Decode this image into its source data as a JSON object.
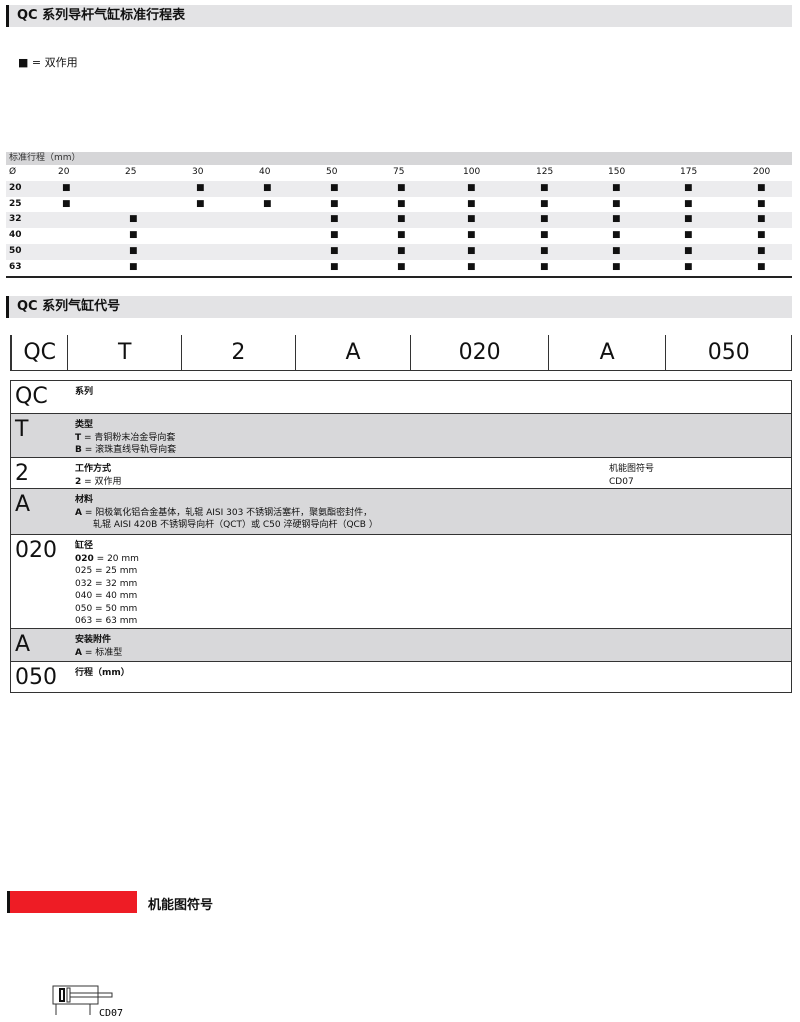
{
  "section1": {
    "title": "QC 系列导杆气缸标准行程表"
  },
  "legend": {
    "symbol": "■",
    "text": "= 双作用"
  },
  "stroke_table": {
    "header": "标准行程（mm）",
    "bore_label": "Ø",
    "strokes": [
      "20",
      "25",
      "30",
      "40",
      "50",
      "75",
      "100",
      "125",
      "150",
      "175",
      "200"
    ],
    "rows": [
      {
        "bore": "20",
        "marks": [
          1,
          0,
          1,
          1,
          1,
          1,
          1,
          1,
          1,
          1,
          1
        ]
      },
      {
        "bore": "25",
        "marks": [
          1,
          0,
          1,
          1,
          1,
          1,
          1,
          1,
          1,
          1,
          1
        ]
      },
      {
        "bore": "32",
        "marks": [
          0,
          1,
          0,
          0,
          1,
          1,
          1,
          1,
          1,
          1,
          1
        ]
      },
      {
        "bore": "40",
        "marks": [
          0,
          1,
          0,
          0,
          1,
          1,
          1,
          1,
          1,
          1,
          1
        ]
      },
      {
        "bore": "50",
        "marks": [
          0,
          1,
          0,
          0,
          1,
          1,
          1,
          1,
          1,
          1,
          1
        ]
      },
      {
        "bore": "63",
        "marks": [
          0,
          1,
          0,
          0,
          1,
          1,
          1,
          1,
          1,
          1,
          1
        ]
      }
    ]
  },
  "section2": {
    "title": "QC 系列气缸代号"
  },
  "code": [
    "QC",
    "T",
    "2",
    "A",
    "020",
    "A",
    "050"
  ],
  "details": [
    {
      "key": "QC",
      "title": "系列",
      "lines": []
    },
    {
      "key": "T",
      "title": "类型",
      "lines": [
        [
          "T",
          "= 青铜粉末冶金导向套"
        ],
        [
          "B",
          "= 滚珠直线导轨导向套"
        ]
      ]
    },
    {
      "key": "2",
      "title": "工作方式",
      "lines": [
        [
          "2",
          "= 双作用"
        ]
      ],
      "right": [
        "机能图符号",
        "CD07"
      ]
    },
    {
      "key": "A",
      "title": "材料",
      "lines": [
        [
          "A",
          "= 阳极氧化铝合金基体，轧辊 AISI 303 不锈钢活塞杆，聚氨酯密封件，"
        ],
        [
          "",
          "　　轧辊 AISI 420B 不锈钢导向杆（QCT）或 C50 淬硬钢导向杆（QCB ）"
        ]
      ]
    },
    {
      "key": "020",
      "title": "缸径",
      "lines": [
        [
          "020",
          "= 20 mm"
        ],
        [
          "",
          "025 = 25 mm"
        ],
        [
          "",
          "032 = 32 mm"
        ],
        [
          "",
          "040 = 40 mm"
        ],
        [
          "",
          "050 = 50 mm"
        ],
        [
          "",
          "063 = 63 mm"
        ]
      ]
    },
    {
      "key": "A",
      "title": "安装附件",
      "lines": [
        [
          "A",
          "= 标准型"
        ]
      ]
    },
    {
      "key": "050",
      "title": "行程（mm）",
      "lines": []
    }
  ],
  "section3": {
    "title": "机能图符号",
    "symbol_label": "CD07"
  },
  "colors": {
    "accent": "#ee1c25",
    "header_bg": "#e3e3e5"
  }
}
